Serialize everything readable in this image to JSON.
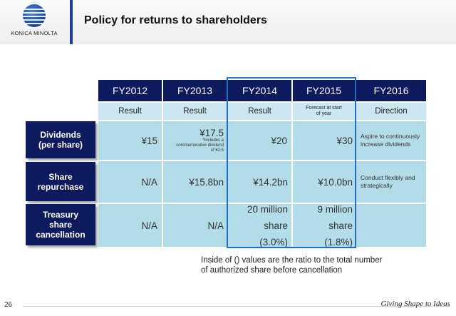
{
  "brand": {
    "name": "KONICA MINOLTA"
  },
  "slide": {
    "title": "Policy for returns to shareholders",
    "page_number": "26",
    "slogan": "Giving Shape to Ideas"
  },
  "table": {
    "columns": [
      "FY2012",
      "FY2013",
      "FY2014",
      "FY2015",
      "FY2016"
    ],
    "subheaders": [
      "Result",
      "Result",
      "Result",
      "Forecast at start of year",
      "Direction"
    ],
    "rows": [
      {
        "label": "Dividends (per share)",
        "values": [
          "¥15",
          "¥17.5",
          "¥20",
          "¥30"
        ],
        "fy2013_note": "*Includes a commemorative dividend of ¥2.5",
        "direction": "Aspire to continuously increase dividends"
      },
      {
        "label": "Share repurchase",
        "values": [
          "N/A",
          "¥15.8bn",
          "¥14.2bn",
          "¥10.0bn"
        ],
        "direction": "Conduct flexibly and strategically"
      },
      {
        "label": "Treasury share cancellation",
        "values": [
          "N/A",
          "N/A",
          "20 million share (3.0%)",
          "9 million share (1.8%)"
        ],
        "direction": ""
      }
    ]
  },
  "footnote": {
    "line1": "Inside of () values are the ratio to the total number",
    "line2": "of authorized share before cancellation"
  },
  "colors": {
    "header_navy": "#0e1a5e",
    "cell_light": "#b3dce9",
    "sub_light": "#cde7f2",
    "highlight_blue": "#1f6fc2"
  }
}
